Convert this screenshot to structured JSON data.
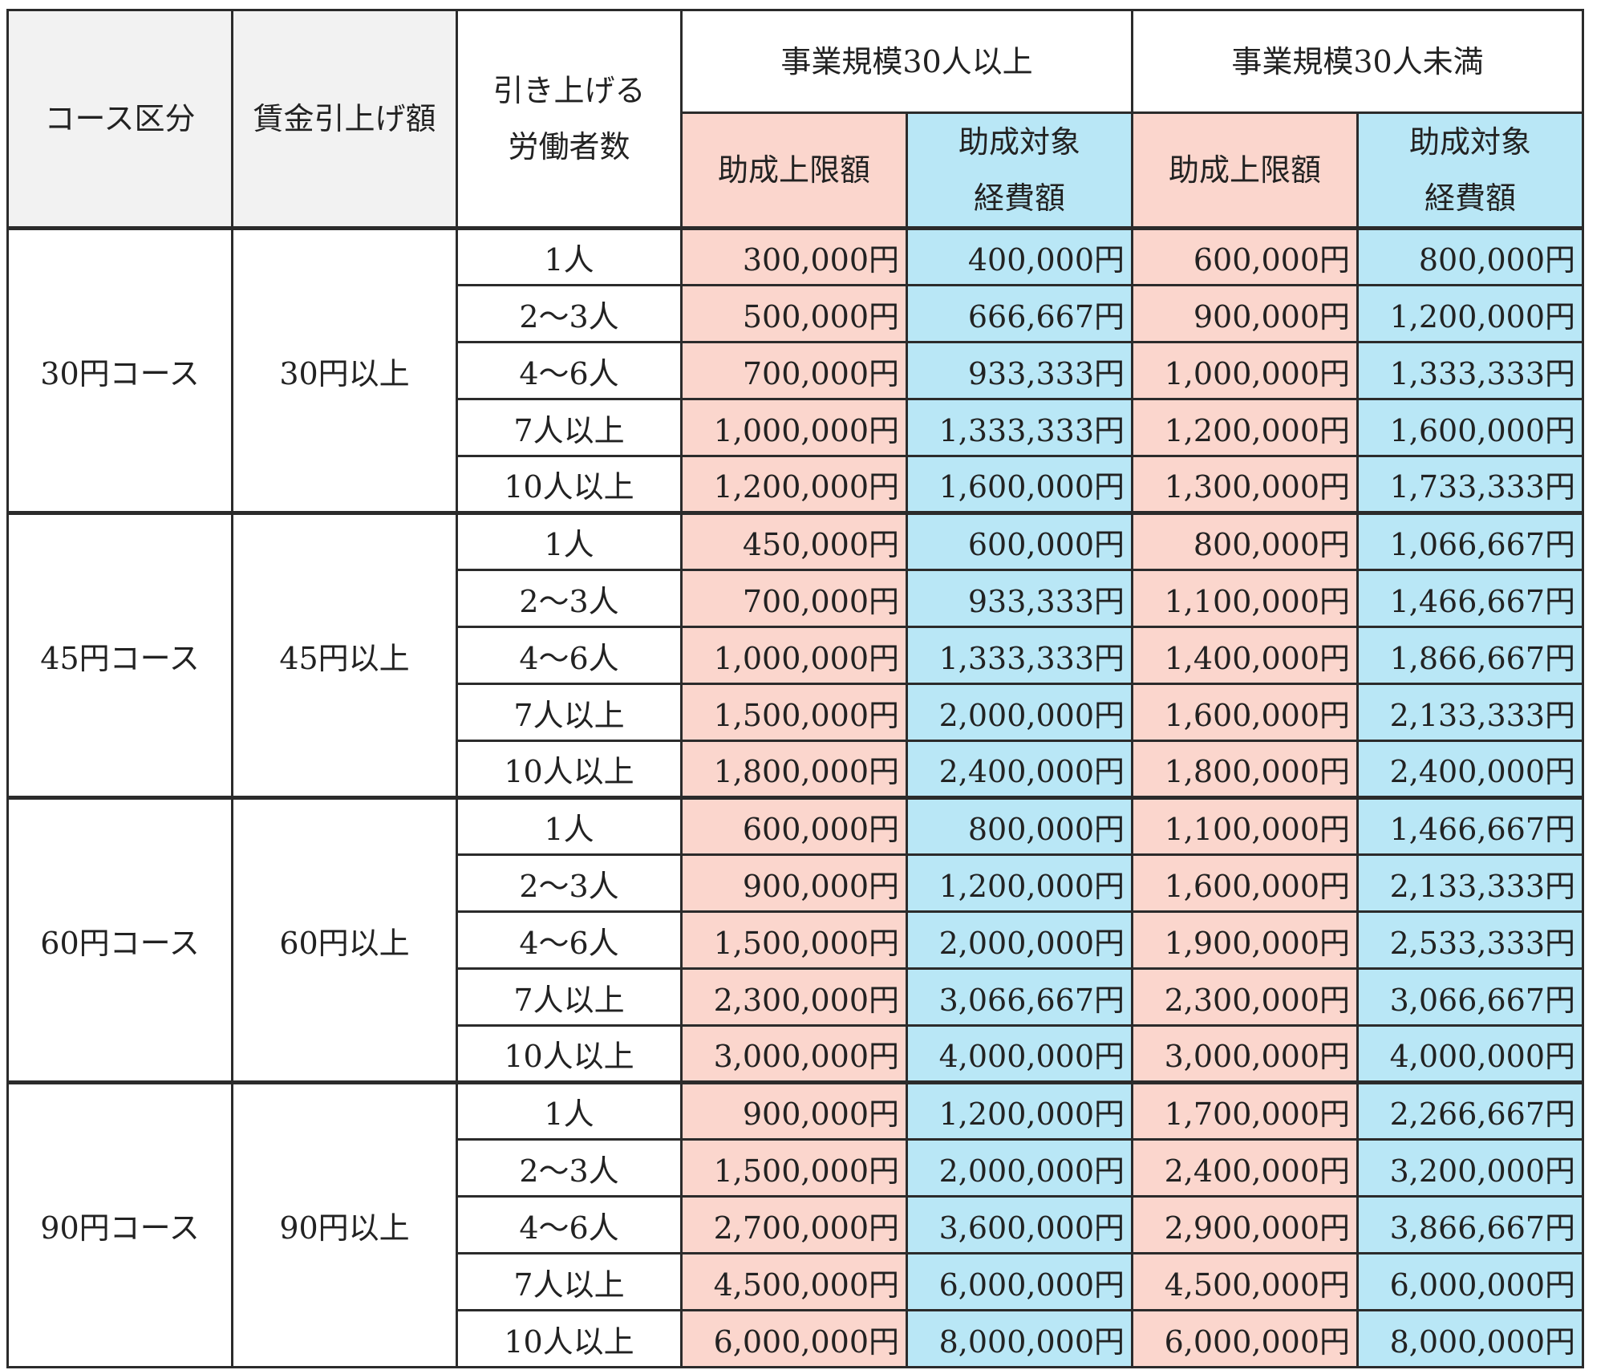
{
  "colors": {
    "pink": "#fbd6cd",
    "blue": "#b9e7f6",
    "header_gray": "#f2f2f2"
  },
  "header": {
    "course_category": "コース区分",
    "wage_increase": "賃金引上げ額",
    "workers_line1": "引き上げる",
    "workers_line2": "労働者数",
    "scale_30_plus": "事業規模30人以上",
    "scale_under_30": "事業規模30人未満",
    "limit": "助成上限額",
    "cost_line1": "助成対象",
    "cost_line2": "経費額"
  },
  "groups": [
    {
      "course": "30円コース",
      "amount": "30円以上",
      "rows": [
        {
          "workers": "1人",
          "a_limit": "300,000円",
          "a_cost": "400,000円",
          "b_limit": "600,000円",
          "b_cost": "800,000円"
        },
        {
          "workers": "2～3人",
          "a_limit": "500,000円",
          "a_cost": "666,667円",
          "b_limit": "900,000円",
          "b_cost": "1,200,000円"
        },
        {
          "workers": "4～6人",
          "a_limit": "700,000円",
          "a_cost": "933,333円",
          "b_limit": "1,000,000円",
          "b_cost": "1,333,333円"
        },
        {
          "workers": "7人以上",
          "a_limit": "1,000,000円",
          "a_cost": "1,333,333円",
          "b_limit": "1,200,000円",
          "b_cost": "1,600,000円"
        },
        {
          "workers": "10人以上",
          "a_limit": "1,200,000円",
          "a_cost": "1,600,000円",
          "b_limit": "1,300,000円",
          "b_cost": "1,733,333円"
        }
      ]
    },
    {
      "course": "45円コース",
      "amount": "45円以上",
      "rows": [
        {
          "workers": "1人",
          "a_limit": "450,000円",
          "a_cost": "600,000円",
          "b_limit": "800,000円",
          "b_cost": "1,066,667円"
        },
        {
          "workers": "2～3人",
          "a_limit": "700,000円",
          "a_cost": "933,333円",
          "b_limit": "1,100,000円",
          "b_cost": "1,466,667円"
        },
        {
          "workers": "4～6人",
          "a_limit": "1,000,000円",
          "a_cost": "1,333,333円",
          "b_limit": "1,400,000円",
          "b_cost": "1,866,667円"
        },
        {
          "workers": "7人以上",
          "a_limit": "1,500,000円",
          "a_cost": "2,000,000円",
          "b_limit": "1,600,000円",
          "b_cost": "2,133,333円"
        },
        {
          "workers": "10人以上",
          "a_limit": "1,800,000円",
          "a_cost": "2,400,000円",
          "b_limit": "1,800,000円",
          "b_cost": "2,400,000円"
        }
      ]
    },
    {
      "course": "60円コース",
      "amount": "60円以上",
      "rows": [
        {
          "workers": "1人",
          "a_limit": "600,000円",
          "a_cost": "800,000円",
          "b_limit": "1,100,000円",
          "b_cost": "1,466,667円"
        },
        {
          "workers": "2～3人",
          "a_limit": "900,000円",
          "a_cost": "1,200,000円",
          "b_limit": "1,600,000円",
          "b_cost": "2,133,333円"
        },
        {
          "workers": "4～6人",
          "a_limit": "1,500,000円",
          "a_cost": "2,000,000円",
          "b_limit": "1,900,000円",
          "b_cost": "2,533,333円"
        },
        {
          "workers": "7人以上",
          "a_limit": "2,300,000円",
          "a_cost": "3,066,667円",
          "b_limit": "2,300,000円",
          "b_cost": "3,066,667円"
        },
        {
          "workers": "10人以上",
          "a_limit": "3,000,000円",
          "a_cost": "4,000,000円",
          "b_limit": "3,000,000円",
          "b_cost": "4,000,000円"
        }
      ]
    },
    {
      "course": "90円コース",
      "amount": "90円以上",
      "rows": [
        {
          "workers": "1人",
          "a_limit": "900,000円",
          "a_cost": "1,200,000円",
          "b_limit": "1,700,000円",
          "b_cost": "2,266,667円"
        },
        {
          "workers": "2～3人",
          "a_limit": "1,500,000円",
          "a_cost": "2,000,000円",
          "b_limit": "2,400,000円",
          "b_cost": "3,200,000円"
        },
        {
          "workers": "4～6人",
          "a_limit": "2,700,000円",
          "a_cost": "3,600,000円",
          "b_limit": "2,900,000円",
          "b_cost": "3,866,667円"
        },
        {
          "workers": "7人以上",
          "a_limit": "4,500,000円",
          "a_cost": "6,000,000円",
          "b_limit": "4,500,000円",
          "b_cost": "6,000,000円"
        },
        {
          "workers": "10人以上",
          "a_limit": "6,000,000円",
          "a_cost": "8,000,000円",
          "b_limit": "6,000,000円",
          "b_cost": "8,000,000円"
        }
      ]
    }
  ]
}
